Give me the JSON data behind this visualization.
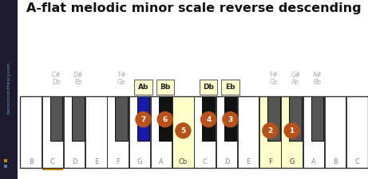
{
  "title": "A-flat melodic minor scale reverse descending",
  "title_fontsize": 11.5,
  "background_color": "#ffffff",
  "sidebar_bg": "#1c1c2e",
  "sidebar_text_color": "#6699cc",
  "sidebar_text": "basicmusictheory.com",
  "legend_orange": "#cc8800",
  "legend_blue": "#5577bb",
  "white_keys": [
    "B",
    "C",
    "D",
    "E",
    "F",
    "G",
    "A",
    "Cb",
    "C",
    "D",
    "E",
    "F",
    "G",
    "A",
    "B",
    "C"
  ],
  "highlighted_white": [
    7,
    11,
    12
  ],
  "orange_underline_idx": 1,
  "bkey_data": [
    {
      "wi": 1,
      "fc": "#555555",
      "l1": "C#",
      "l2": "Db",
      "box": false,
      "circle": null
    },
    {
      "wi": 2,
      "fc": "#555555",
      "l1": "D#",
      "l2": "Eb",
      "box": false,
      "circle": null
    },
    {
      "wi": 4,
      "fc": "#555555",
      "l1": "F#",
      "l2": "Gb",
      "box": false,
      "circle": null
    },
    {
      "wi": 5,
      "fc": "#1a1aaa",
      "l1": "Ab",
      "l2": null,
      "box": true,
      "circle": 7
    },
    {
      "wi": 6,
      "fc": "#111111",
      "l1": "Bb",
      "l2": null,
      "box": true,
      "circle": 6
    },
    {
      "wi": 8,
      "fc": "#111111",
      "l1": "Db",
      "l2": null,
      "box": true,
      "circle": 4
    },
    {
      "wi": 9,
      "fc": "#111111",
      "l1": "Eb",
      "l2": null,
      "box": true,
      "circle": 3
    },
    {
      "wi": 11,
      "fc": "#555555",
      "l1": "F#",
      "l2": "Gb",
      "box": false,
      "circle": null
    },
    {
      "wi": 12,
      "fc": "#555555",
      "l1": "G#",
      "l2": "Ab",
      "box": false,
      "circle": null
    },
    {
      "wi": 13,
      "fc": "#555555",
      "l1": "A#",
      "l2": "Bb",
      "box": false,
      "circle": null
    }
  ],
  "white_circles": [
    {
      "wi": 7,
      "num": 5
    },
    {
      "wi": 11,
      "num": 2
    },
    {
      "wi": 12,
      "num": 1
    }
  ],
  "circle_color": "#b8521a"
}
